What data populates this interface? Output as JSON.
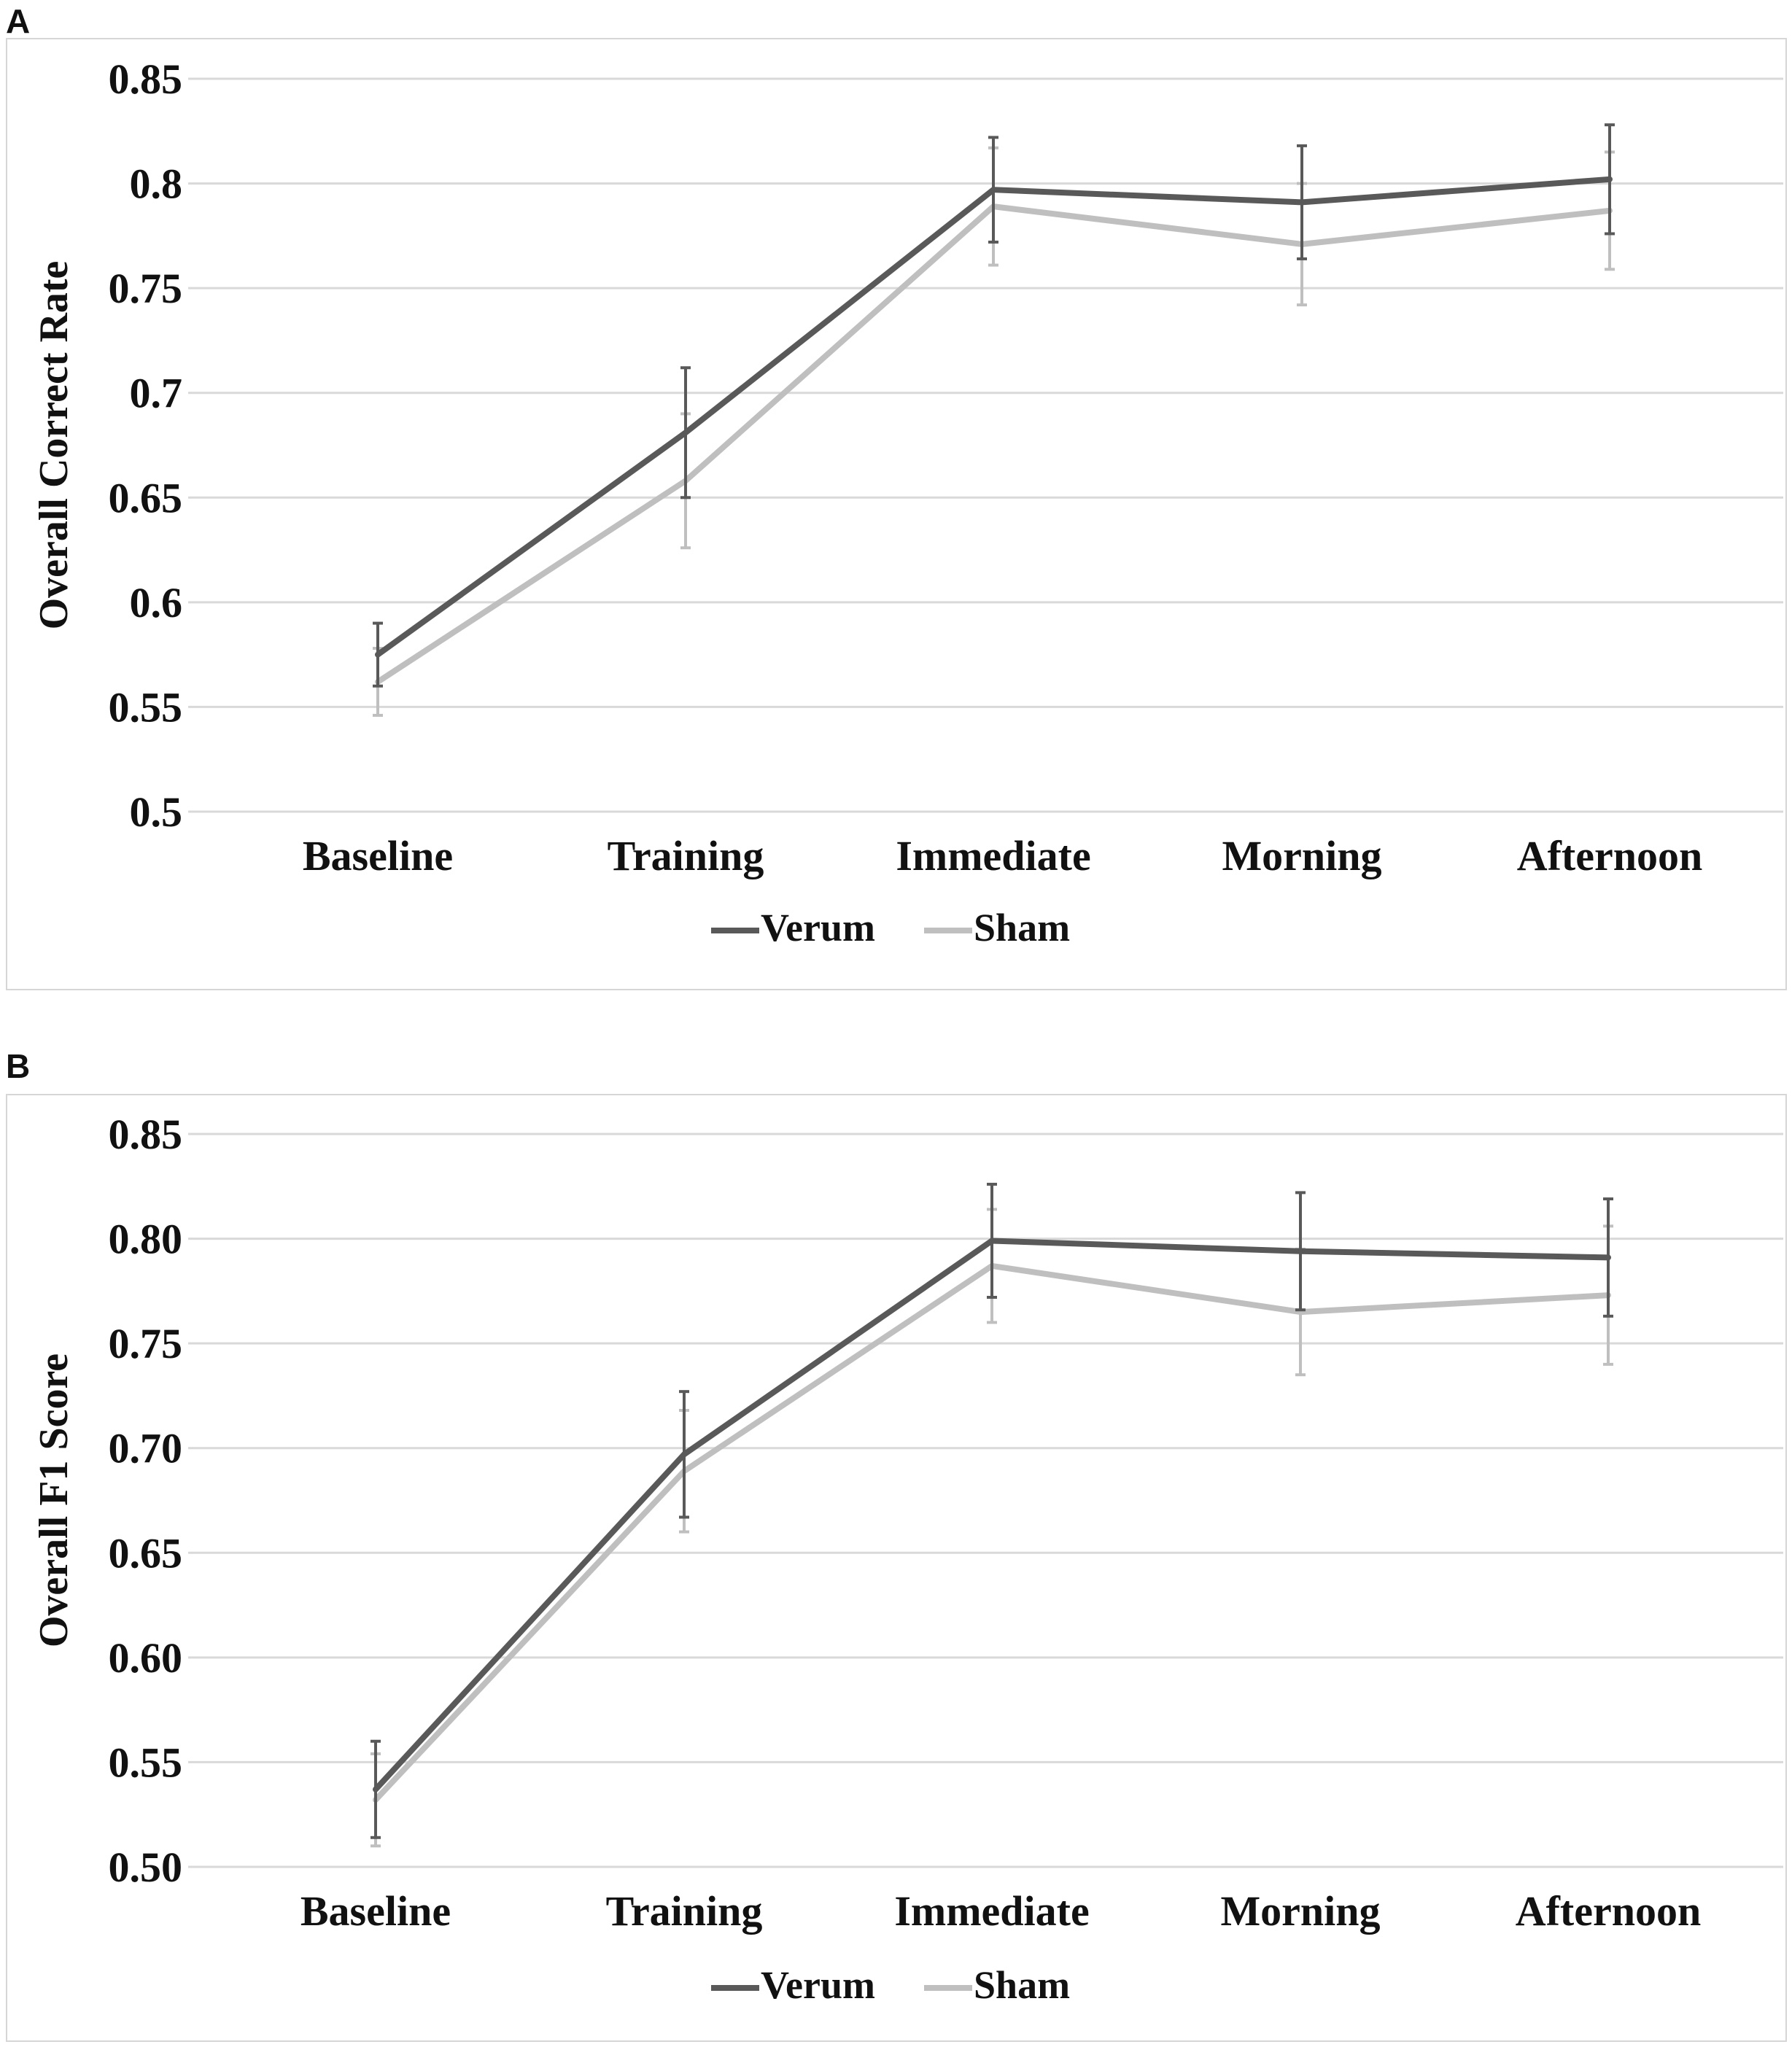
{
  "chart_data": [
    {
      "panel": "A",
      "type": "line",
      "ylabel": "Overall Correct Rate",
      "ylim": [
        0.5,
        0.85
      ],
      "yticks": [
        "0.5",
        "0.55",
        "0.6",
        "0.65",
        "0.7",
        "0.75",
        "0.8",
        "0.85"
      ],
      "categories": [
        "Baseline",
        "Training",
        "Immediate",
        "Morning",
        "Afternoon"
      ],
      "series": [
        {
          "name": "Verum",
          "color": "#595959",
          "values": [
            0.575,
            0.681,
            0.797,
            0.791,
            0.802
          ],
          "errors": [
            0.015,
            0.031,
            0.025,
            0.027,
            0.026
          ]
        },
        {
          "name": "Sham",
          "color": "#bfbfbf",
          "values": [
            0.562,
            0.658,
            0.789,
            0.771,
            0.787
          ],
          "errors": [
            0.016,
            0.032,
            0.028,
            0.029,
            0.028
          ]
        }
      ],
      "legend": "bottom"
    },
    {
      "panel": "B",
      "type": "line",
      "ylabel": "Overall F1 Score",
      "ylim": [
        0.5,
        0.85
      ],
      "yticks": [
        "0.50",
        "0.55",
        "0.60",
        "0.65",
        "0.70",
        "0.75",
        "0.80",
        "0.85"
      ],
      "categories": [
        "Baseline",
        "Training",
        "Immediate",
        "Morning",
        "Afternoon"
      ],
      "series": [
        {
          "name": "Verum",
          "color": "#595959",
          "values": [
            0.537,
            0.697,
            0.799,
            0.794,
            0.791
          ],
          "errors": [
            0.023,
            0.03,
            0.027,
            0.028,
            0.028
          ]
        },
        {
          "name": "Sham",
          "color": "#bfbfbf",
          "values": [
            0.532,
            0.689,
            0.787,
            0.765,
            0.773
          ],
          "errors": [
            0.022,
            0.029,
            0.027,
            0.03,
            0.033
          ]
        }
      ],
      "legend": "bottom"
    }
  ]
}
